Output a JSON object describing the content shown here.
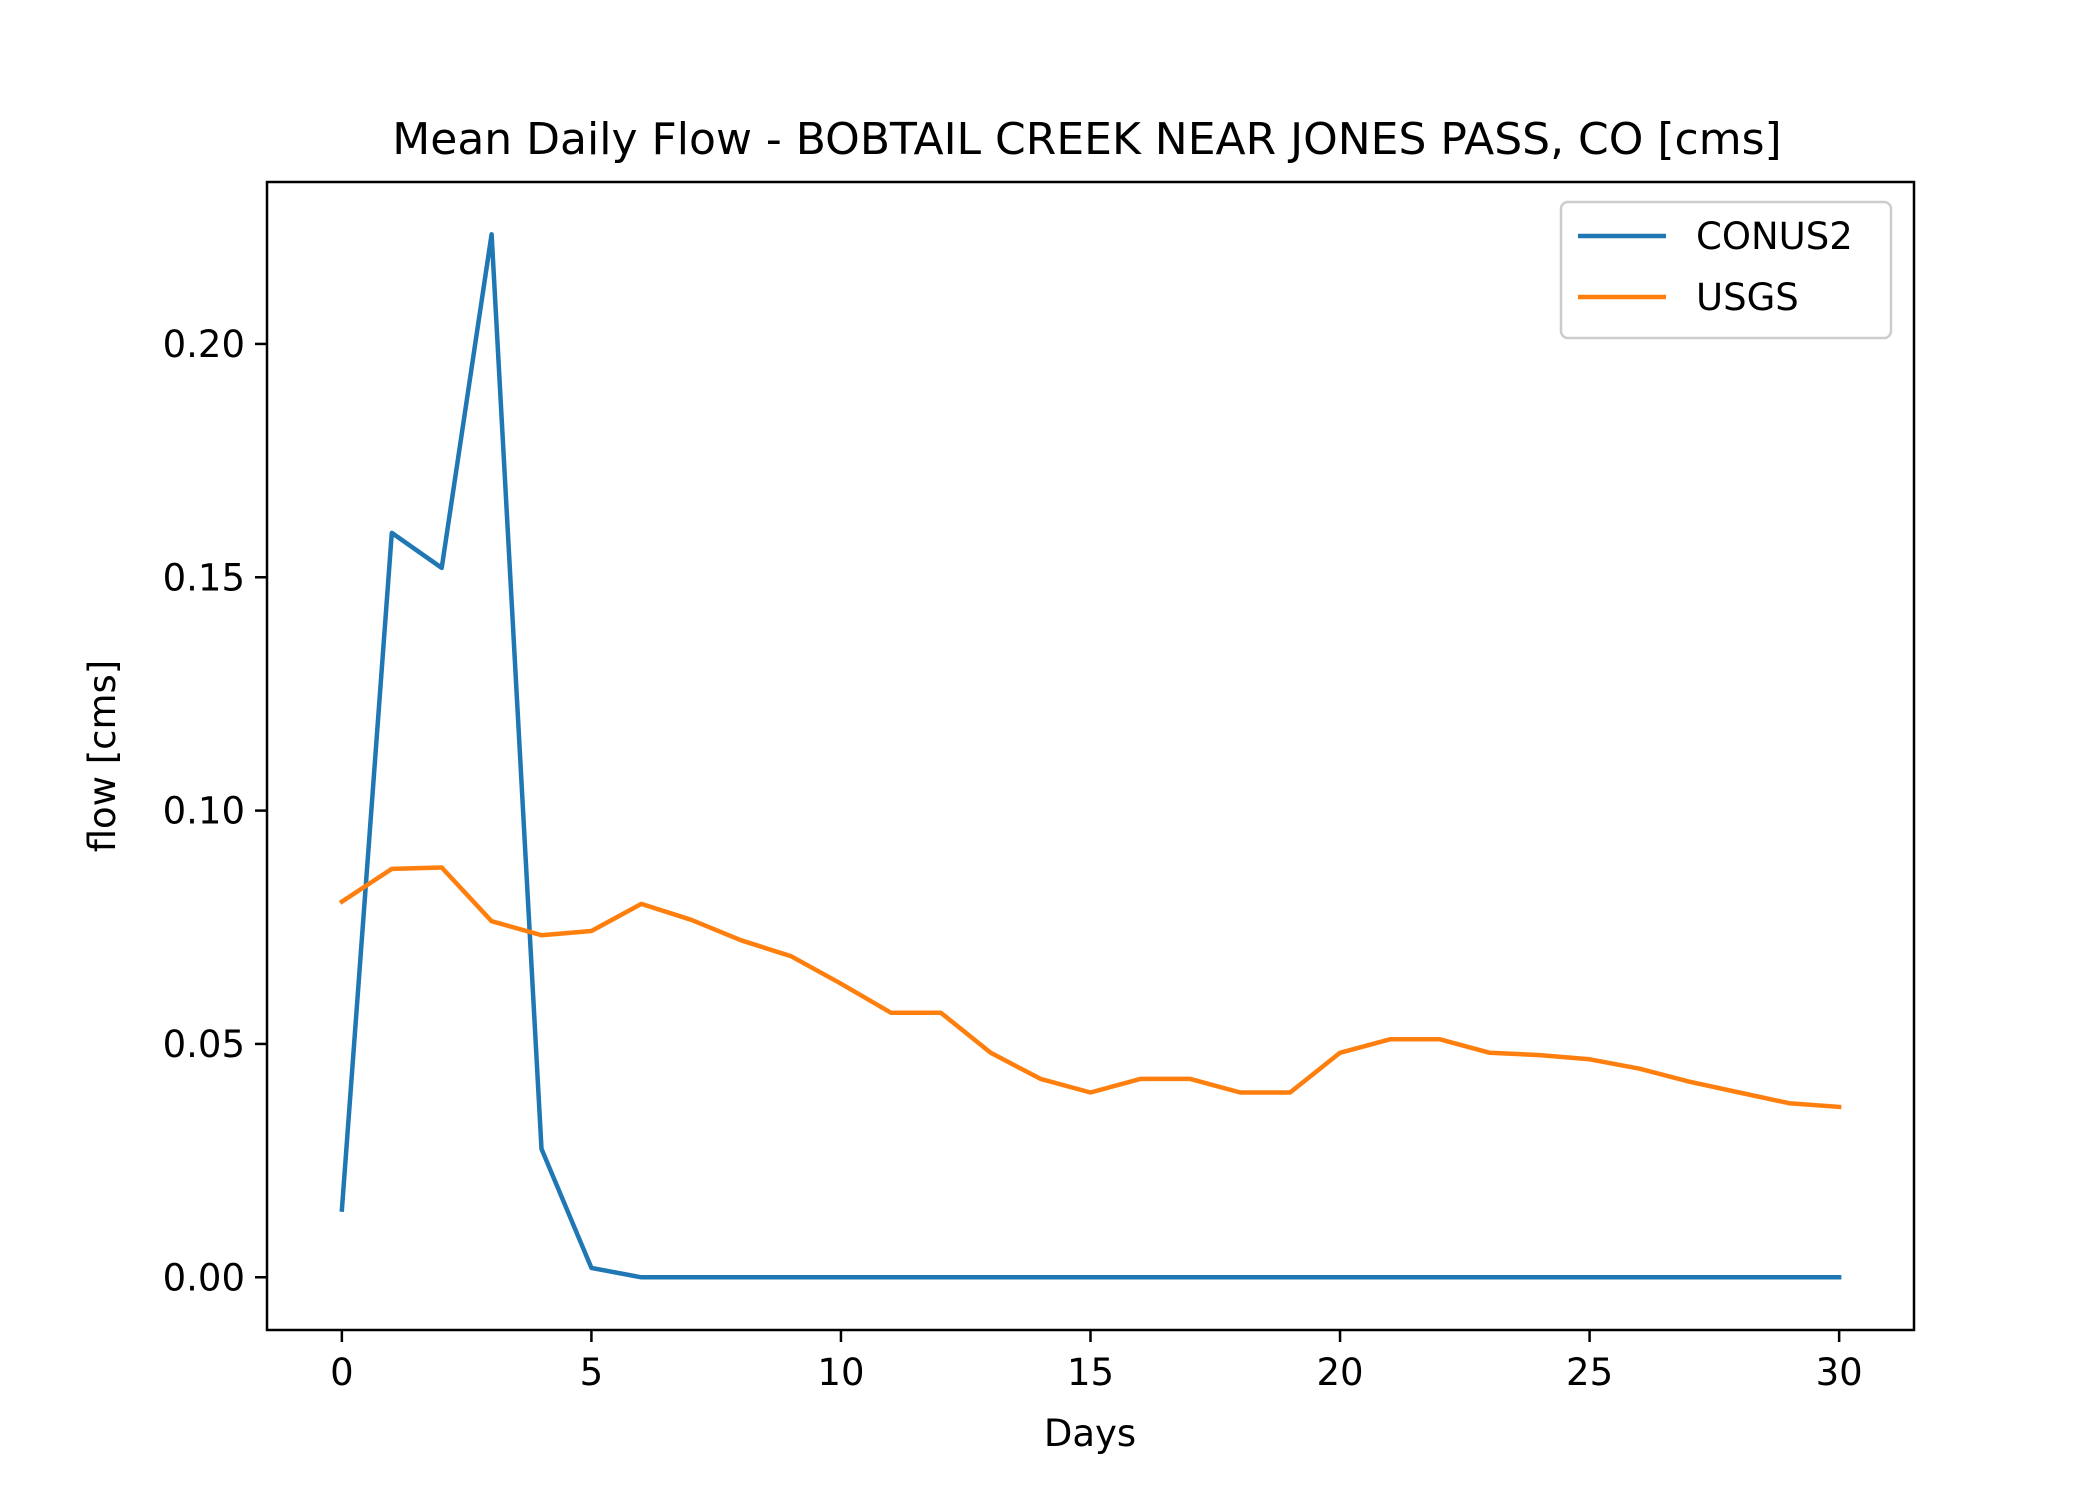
{
  "chart_data": {
    "type": "line",
    "title": "Mean Daily Flow - BOBTAIL CREEK NEAR JONES PASS, CO [cms]",
    "xlabel": "Days",
    "ylabel": "flow [cms]",
    "xlim": [
      -1.5,
      31.5
    ],
    "ylim": [
      -0.0113,
      0.2347
    ],
    "xticks": [
      0,
      5,
      10,
      15,
      20,
      25,
      30
    ],
    "xtick_labels": [
      "0",
      "5",
      "10",
      "15",
      "20",
      "25",
      "30"
    ],
    "yticks": [
      0.0,
      0.05,
      0.1,
      0.15,
      0.2
    ],
    "ytick_labels": [
      "0.00",
      "0.05",
      "0.10",
      "0.15",
      "0.20"
    ],
    "grid": false,
    "legend": "top-right",
    "x": [
      0,
      1,
      2,
      3,
      4,
      5,
      6,
      7,
      8,
      9,
      10,
      11,
      12,
      13,
      14,
      15,
      16,
      17,
      18,
      19,
      20,
      21,
      22,
      23,
      24,
      25,
      26,
      27,
      28,
      29,
      30
    ],
    "series": [
      {
        "name": "CONUS2",
        "color": "#1f77b4",
        "values": [
          0.0145,
          0.1595,
          0.152,
          0.2235,
          0.0275,
          0.002,
          0.0,
          0.0,
          0.0,
          0.0,
          0.0,
          0.0,
          0.0,
          0.0,
          0.0,
          0.0,
          0.0,
          0.0,
          0.0,
          0.0,
          0.0,
          0.0,
          0.0,
          0.0,
          0.0,
          0.0,
          0.0,
          0.0,
          0.0,
          0.0,
          0.0
        ]
      },
      {
        "name": "USGS",
        "color": "#ff7f0e",
        "values": [
          0.0805,
          0.0875,
          0.0878,
          0.0763,
          0.0733,
          0.0742,
          0.08,
          0.0766,
          0.0722,
          0.0688,
          0.0629,
          0.0567,
          0.0567,
          0.0481,
          0.0425,
          0.0396,
          0.0425,
          0.0425,
          0.0396,
          0.0396,
          0.0481,
          0.051,
          0.051,
          0.0481,
          0.0476,
          0.0467,
          0.0447,
          0.0419,
          0.0396,
          0.0373,
          0.0365
        ]
      }
    ]
  }
}
